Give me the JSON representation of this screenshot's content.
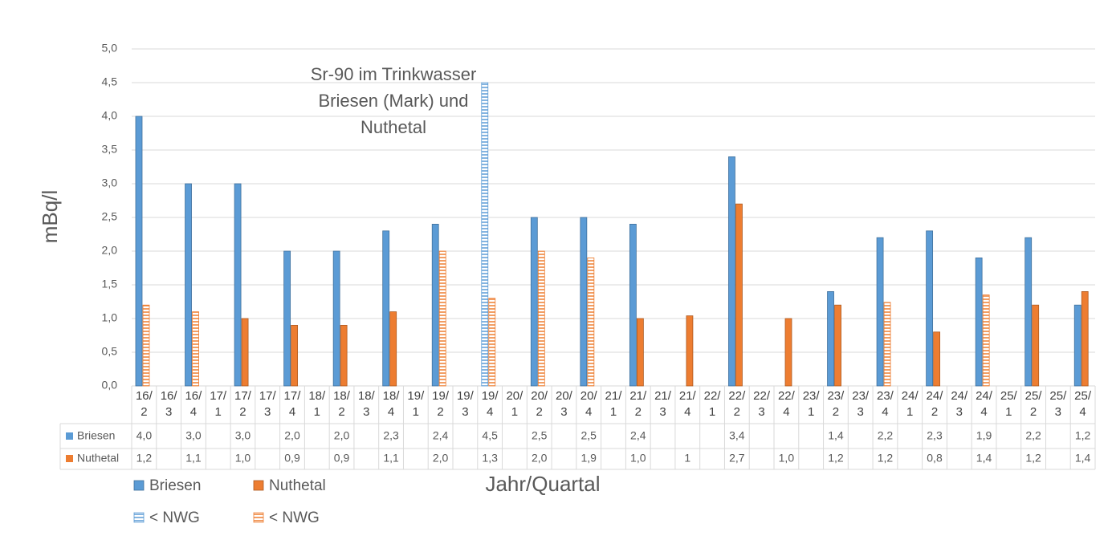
{
  "chart_data": {
    "type": "bar",
    "title": "Sr-90 im Trinkwasser Briesen (Mark) und Nuthetal",
    "x_label": "Jahr/Quartal",
    "y_label": "mBq/l",
    "categories": [
      "16/2",
      "16/3",
      "16/4",
      "17/1",
      "17/2",
      "17/3",
      "17/4",
      "18/1",
      "18/2",
      "18/3",
      "18/4",
      "19/1",
      "19/2",
      "19/3",
      "19/4",
      "20/1",
      "20/2",
      "20/3",
      "20/4",
      "21/1",
      "21/2",
      "21/3",
      "21/4",
      "22/1",
      "22/2",
      "22/3",
      "22/4",
      "23/1",
      "23/2",
      "23/3",
      "23/4",
      "24/1",
      "24/2",
      "24/3",
      "24/4",
      "25/1",
      "25/2",
      "25/3",
      "25/4"
    ],
    "series": [
      {
        "name": "Briesen",
        "color": "#5b9bd5",
        "nwg_name": "< NWG",
        "values": [
          4.0,
          null,
          3.0,
          null,
          3.0,
          null,
          2.0,
          null,
          2.0,
          null,
          2.3,
          null,
          2.4,
          null,
          4.5,
          null,
          2.5,
          null,
          2.5,
          null,
          2.4,
          null,
          null,
          null,
          3.4,
          null,
          null,
          null,
          1.4,
          null,
          2.2,
          null,
          2.3,
          null,
          1.9,
          null,
          2.2,
          null,
          1.2
        ],
        "value_labels": [
          "4,0",
          null,
          "3,0",
          null,
          "3,0",
          null,
          "2,0",
          null,
          "2,0",
          null,
          "2,3",
          null,
          "2,4",
          null,
          "4,5",
          null,
          "2,5",
          null,
          "2,5",
          null,
          "2,4",
          null,
          null,
          null,
          "3,4",
          null,
          null,
          null,
          "1,4",
          null,
          "2,2",
          null,
          "2,3",
          null,
          "1,9",
          null,
          "2,2",
          null,
          "1,2"
        ],
        "below_nwg": [
          false,
          false,
          false,
          false,
          false,
          false,
          false,
          false,
          false,
          false,
          false,
          false,
          false,
          false,
          true,
          false,
          false,
          false,
          false,
          false,
          false,
          false,
          false,
          false,
          false,
          false,
          false,
          false,
          false,
          false,
          false,
          false,
          false,
          false,
          false,
          false,
          false,
          false,
          false
        ]
      },
      {
        "name": "Nuthetal",
        "color": "#ed7d31",
        "nwg_name": "< NWG",
        "values": [
          1.2,
          null,
          1.1,
          null,
          1.0,
          null,
          0.9,
          null,
          0.9,
          null,
          1.1,
          null,
          2.0,
          null,
          1.3,
          null,
          2.0,
          null,
          1.9,
          null,
          1.0,
          null,
          1.04,
          null,
          2.7,
          null,
          1.0,
          null,
          1.2,
          null,
          1.24,
          null,
          0.8,
          null,
          1.35,
          null,
          1.2,
          null,
          1.4
        ],
        "value_labels": [
          "1,2",
          null,
          "1,1",
          null,
          "1,0",
          null,
          "0,9",
          null,
          "0,9",
          null,
          "1,1",
          null,
          "2,0",
          null,
          "1,3",
          null,
          "2,0",
          null,
          "1,9",
          null,
          "1,0",
          null,
          "1",
          null,
          "2,7",
          null,
          "1,0",
          null,
          "1,2",
          null,
          "1,2",
          null,
          "0,8",
          null,
          "1,4",
          null,
          "1,2",
          null,
          "1,4"
        ],
        "below_nwg": [
          true,
          false,
          true,
          false,
          false,
          false,
          false,
          false,
          false,
          false,
          false,
          false,
          true,
          false,
          true,
          false,
          true,
          false,
          true,
          false,
          false,
          false,
          false,
          false,
          false,
          false,
          false,
          false,
          false,
          false,
          true,
          false,
          false,
          false,
          true,
          false,
          false,
          false,
          false
        ]
      }
    ],
    "ylim": [
      0,
      5
    ],
    "yticks": [
      {
        "value": 0,
        "label": "0,0"
      },
      {
        "value": 0.5,
        "label": "0,5"
      },
      {
        "value": 1,
        "label": "1,0"
      },
      {
        "value": 1.5,
        "label": "1,5"
      },
      {
        "value": 2,
        "label": "2,0"
      },
      {
        "value": 2.5,
        "label": "2,5"
      },
      {
        "value": 3,
        "label": "3,0"
      },
      {
        "value": 3.5,
        "label": "3,5"
      },
      {
        "value": 4,
        "label": "4,0"
      },
      {
        "value": 4.5,
        "label": "4,5"
      },
      {
        "value": 5,
        "label": "5,0"
      }
    ],
    "grid": true
  }
}
